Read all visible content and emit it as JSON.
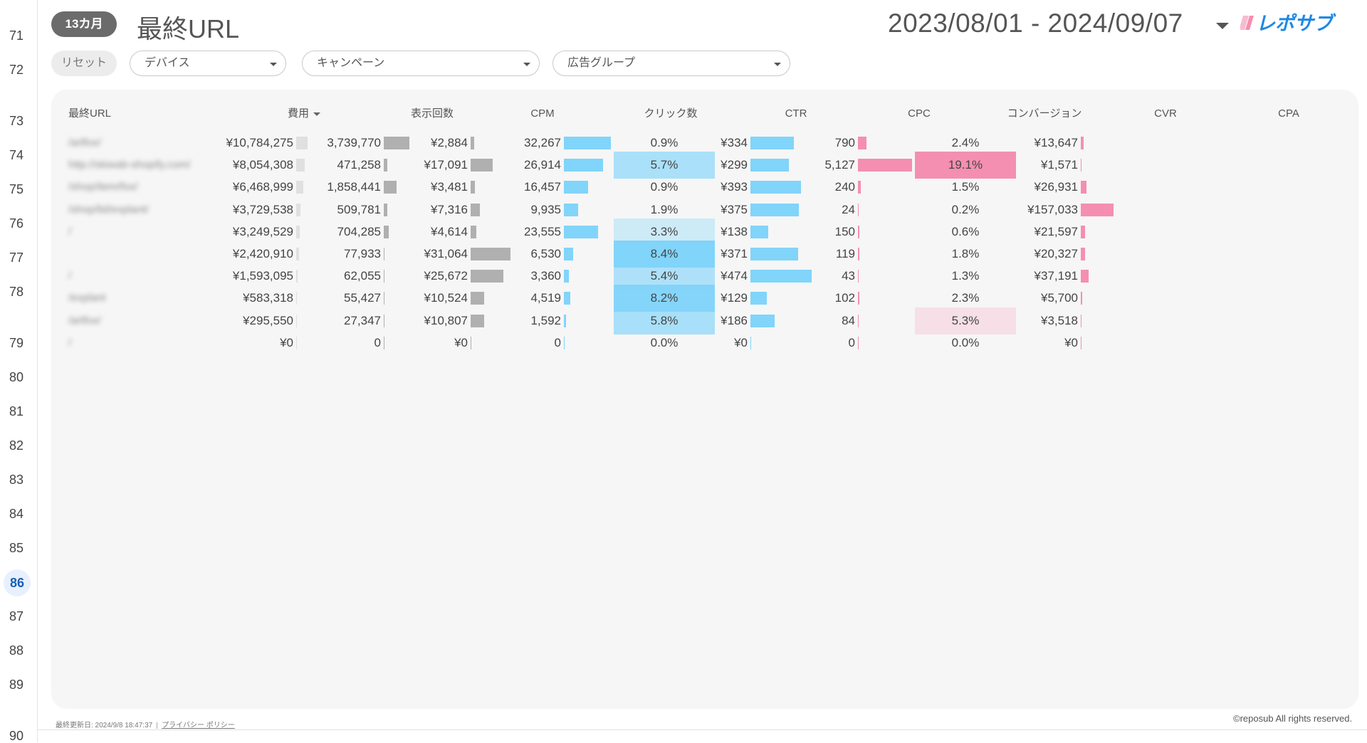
{
  "gutter": {
    "line_numbers": [
      "71",
      "72",
      "73",
      "74",
      "75",
      "76",
      "77",
      "78",
      "79",
      "80",
      "81",
      "82",
      "83",
      "84",
      "85",
      "86",
      "87",
      "88",
      "89",
      "90"
    ],
    "active_line": "86"
  },
  "header": {
    "period_badge": "13カ月",
    "title": "最終URL",
    "date_range": "2023/08/01 - 2024/09/07",
    "logo_alt": "レポサブ"
  },
  "filters": {
    "reset_label": "リセット",
    "device": "デバイス",
    "campaign": "キャンペーン",
    "ad_group": "広告グループ"
  },
  "table": {
    "headers": {
      "url": "最終URL",
      "cost": "費用",
      "impressions": "表示回数",
      "cpm": "CPM",
      "clicks": "クリック数",
      "ctr": "CTR",
      "cpc": "CPC",
      "conversions": "コンバージョン",
      "cvr": "CVR",
      "cpa": "CPA"
    },
    "rows": [
      {
        "url": "/artfox/",
        "cost": "¥10,784,275",
        "impressions": "3,739,770",
        "cpm": "¥2,884",
        "clicks": "32,267",
        "ctr": "0.9%",
        "cpc": "¥334",
        "conversions": "790",
        "cvr": "2.4%",
        "cpa": "¥13,647"
      },
      {
        "url": "http://skiwab-shopify.com/",
        "cost": "¥8,054,308",
        "impressions": "471,258",
        "cpm": "¥17,091",
        "clicks": "26,914",
        "ctr": "5.7%",
        "cpc": "¥299",
        "conversions": "5,127",
        "cvr": "19.1%",
        "cpa": "¥1,571"
      },
      {
        "url": "/shop/item/fox/",
        "cost": "¥6,468,999",
        "impressions": "1,858,441",
        "cpm": "¥3,481",
        "clicks": "16,457",
        "ctr": "0.9%",
        "cpc": "¥393",
        "conversions": "240",
        "cvr": "1.5%",
        "cpa": "¥26,931"
      },
      {
        "url": "/shop/lid/explant/",
        "cost": "¥3,729,538",
        "impressions": "509,781",
        "cpm": "¥7,316",
        "clicks": "9,935",
        "ctr": "1.9%",
        "cpc": "¥375",
        "conversions": "24",
        "cvr": "0.2%",
        "cpa": "¥157,033"
      },
      {
        "url": "/",
        "cost": "¥3,249,529",
        "impressions": "704,285",
        "cpm": "¥4,614",
        "clicks": "23,555",
        "ctr": "3.3%",
        "cpc": "¥138",
        "conversions": "150",
        "cvr": "0.6%",
        "cpa": "¥21,597"
      },
      {
        "url": "",
        "cost": "¥2,420,910",
        "impressions": "77,933",
        "cpm": "¥31,064",
        "clicks": "6,530",
        "ctr": "8.4%",
        "cpc": "¥371",
        "conversions": "119",
        "cvr": "1.8%",
        "cpa": "¥20,327"
      },
      {
        "url": "/",
        "cost": "¥1,593,095",
        "impressions": "62,055",
        "cpm": "¥25,672",
        "clicks": "3,360",
        "ctr": "5.4%",
        "cpc": "¥474",
        "conversions": "43",
        "cvr": "1.3%",
        "cpa": "¥37,191"
      },
      {
        "url": "/explant",
        "cost": "¥583,318",
        "impressions": "55,427",
        "cpm": "¥10,524",
        "clicks": "4,519",
        "ctr": "8.2%",
        "cpc": "¥129",
        "conversions": "102",
        "cvr": "2.3%",
        "cpa": "¥5,700"
      },
      {
        "url": "/artfox/",
        "cost": "¥295,550",
        "impressions": "27,347",
        "cpm": "¥10,807",
        "clicks": "1,592",
        "ctr": "5.8%",
        "cpc": "¥186",
        "conversions": "84",
        "cvr": "5.3%",
        "cpa": "¥3,518"
      },
      {
        "url": "/",
        "cost": "¥0",
        "impressions": "0",
        "cpm": "¥0",
        "clicks": "0",
        "ctr": "0.0%",
        "cpc": "¥0",
        "conversions": "0",
        "cvr": "0.0%",
        "cpa": "¥0"
      }
    ]
  },
  "colors": {
    "blue_bar": "#81d4fa",
    "pink_bar": "#f48fb1",
    "gray_bar": "#b0b0b0",
    "light_bar": "#e0e0e0"
  },
  "footer": {
    "last_updated": "最終更新日: 2024/9/8 18:47:37",
    "privacy": "プライバシー ポリシー",
    "copyright": "©reposub All rights reserved."
  }
}
